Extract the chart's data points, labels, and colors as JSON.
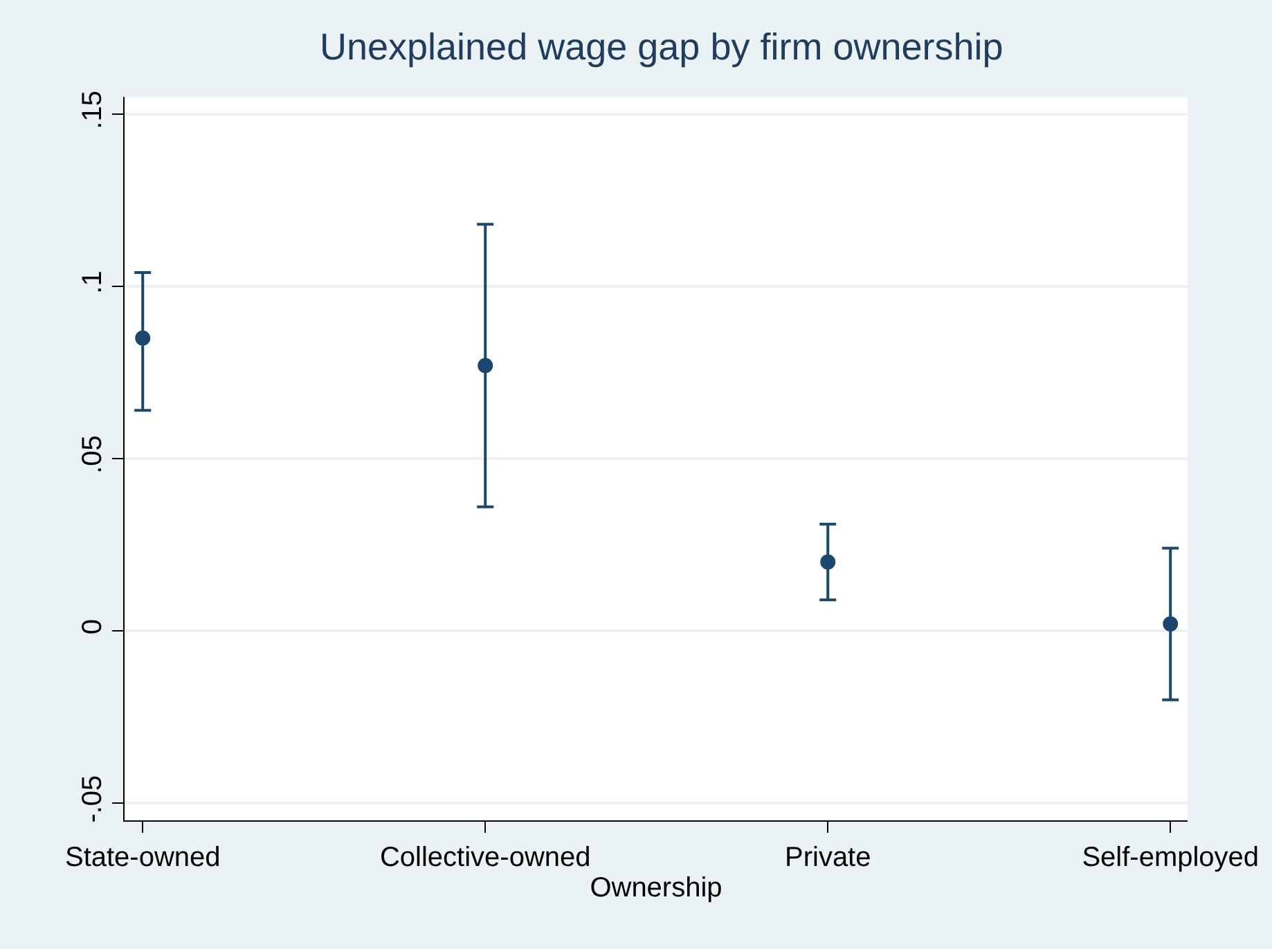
{
  "chart_data": {
    "type": "scatter",
    "title": "Unexplained wage gap by firm ownership",
    "xlabel": "Ownership",
    "categories": [
      "State-owned",
      "Collective-owned",
      "Private",
      "Self-employed"
    ],
    "series": [
      {
        "color": "#1a476f",
        "values": [
          0.085,
          0.077,
          0.02,
          0.002
        ],
        "errors": [
          [
            0.064,
            0.104
          ],
          [
            0.036,
            0.118
          ],
          [
            0.009,
            0.031
          ],
          [
            -0.02,
            0.024
          ]
        ]
      }
    ],
    "ylim": [
      -0.055,
      0.155
    ],
    "yticks": [
      {
        "value": -0.05,
        "label": "-.05"
      },
      {
        "value": 0,
        "label": "0"
      },
      {
        "value": 0.05,
        "label": ".05"
      },
      {
        "value": 0.1,
        "label": ".1"
      },
      {
        "value": 0.15,
        "label": ".15"
      }
    ],
    "grid": "y",
    "marker": "circle"
  }
}
